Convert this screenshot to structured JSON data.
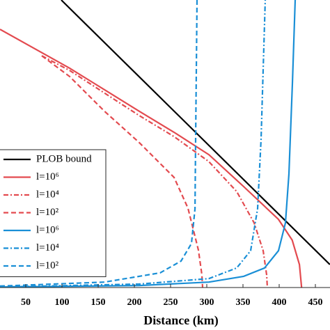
{
  "chart_data": {
    "type": "line",
    "xlabel": "Distance (km)",
    "xlim": [
      14.4,
      470.2
    ],
    "xticks": [
      50,
      100,
      150,
      200,
      250,
      300,
      350,
      400,
      450
    ],
    "ylim": [
      0,
      100
    ],
    "legend": "lower left",
    "series": [
      {
        "name": "PLOB bound",
        "color": "#000000",
        "dash": "solid",
        "x": [
          99,
          470
        ],
        "values": [
          100,
          8
        ]
      },
      {
        "name": "l=10⁶",
        "color": "#e34a4f",
        "dash": "solid",
        "x": [
          14.4,
          110.6,
          206.7,
          254.8,
          303,
          351,
          399,
          418,
          428,
          431
        ],
        "values": [
          89.8,
          76.3,
          61.3,
          54,
          46.2,
          35.1,
          23.7,
          16.5,
          8,
          0
        ]
      },
      {
        "name": "l=10⁴",
        "color": "#e34a4f",
        "dash": "dashdot",
        "x": [
          72.1,
          110.6,
          206.7,
          254.8,
          302.9,
          341.3,
          365.4,
          377.9,
          382.7,
          383.7
        ],
        "values": [
          80.6,
          75.5,
          59.8,
          52.5,
          43.8,
          33.4,
          22.5,
          12.8,
          4.4,
          0
        ]
      },
      {
        "name": "l=10²",
        "color": "#e34a4f",
        "dash": "dashed",
        "x": [
          72.1,
          110.6,
          158.7,
          206.7,
          254.8,
          274,
          288.5,
          293.3,
          294.2
        ],
        "values": [
          80.6,
          73.4,
          61.3,
          50.4,
          38.3,
          27.6,
          13,
          4.4,
          0
        ]
      },
      {
        "name": "l=10⁶",
        "color": "#1a8fd6",
        "dash": "solid",
        "x": [
          14.4,
          206.7,
          302.9,
          351,
          379.8,
          399,
          408.7,
          413.5,
          418.3,
          422.1
        ],
        "values": [
          0.2,
          0.7,
          1.9,
          3.9,
          6.8,
          12.8,
          22.5,
          39.5,
          71,
          100
        ]
      },
      {
        "name": "l=10⁴",
        "color": "#1a8fd6",
        "dash": "dashdot",
        "x": [
          14.4,
          206.7,
          302.9,
          341.3,
          360.6,
          370.2,
          375,
          377.9,
          380.8
        ],
        "values": [
          0.2,
          1.2,
          3.1,
          6.8,
          12.8,
          27.4,
          51.6,
          75.8,
          100
        ]
      },
      {
        "name": "l=10²",
        "color": "#1a8fd6",
        "dash": "dashed",
        "x": [
          14.4,
          158.7,
          235.6,
          264.4,
          278.8,
          283.7,
          284.6,
          286.5
        ],
        "values": [
          0.5,
          1.9,
          5.1,
          9.2,
          15.3,
          27.4,
          51.6,
          100
        ]
      }
    ]
  }
}
